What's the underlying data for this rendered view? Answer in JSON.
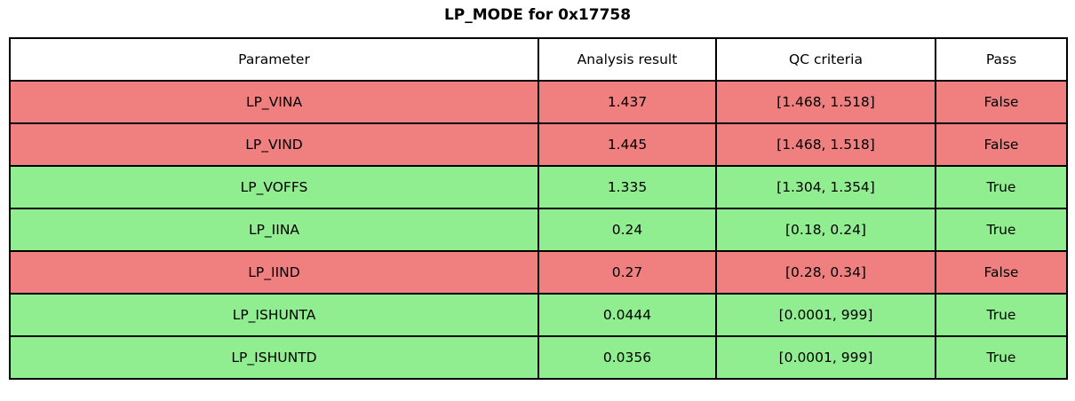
{
  "title": "LP_MODE for 0x17758",
  "colors": {
    "pass_row_bg": "#90ee90",
    "fail_row_bg": "#f08080",
    "header_bg": "#ffffff",
    "border": "#000000",
    "text": "#000000"
  },
  "chart_data": {
    "type": "table",
    "title": "LP_MODE for 0x17758",
    "columns": [
      "Parameter",
      "Analysis result",
      "QC criteria",
      "Pass"
    ],
    "rows": [
      {
        "parameter": "LP_VINA",
        "analysis_result": "1.437",
        "qc_criteria": "[1.468, 1.518]",
        "pass": "False"
      },
      {
        "parameter": "LP_VIND",
        "analysis_result": "1.445",
        "qc_criteria": "[1.468, 1.518]",
        "pass": "False"
      },
      {
        "parameter": "LP_VOFFS",
        "analysis_result": "1.335",
        "qc_criteria": "[1.304, 1.354]",
        "pass": "True"
      },
      {
        "parameter": "LP_IINA",
        "analysis_result": "0.24",
        "qc_criteria": "[0.18, 0.24]",
        "pass": "True"
      },
      {
        "parameter": "LP_IIND",
        "analysis_result": "0.27",
        "qc_criteria": "[0.28, 0.34]",
        "pass": "False"
      },
      {
        "parameter": "LP_ISHUNTA",
        "analysis_result": "0.0444",
        "qc_criteria": "[0.0001, 999]",
        "pass": "True"
      },
      {
        "parameter": "LP_ISHUNTD",
        "analysis_result": "0.0356",
        "qc_criteria": "[0.0001, 999]",
        "pass": "True"
      }
    ]
  }
}
